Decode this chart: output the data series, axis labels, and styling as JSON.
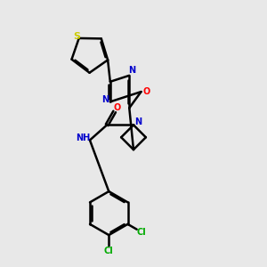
{
  "background_color": "#e8e8e8",
  "atom_colors": {
    "S": "#cccc00",
    "N": "#0000cc",
    "O": "#ff0000",
    "Cl": "#00aa00",
    "C": "#000000",
    "H": "#555555"
  },
  "bond_color": "#000000",
  "bond_width": 1.8,
  "figsize": [
    3.0,
    3.0
  ],
  "dpi": 100
}
